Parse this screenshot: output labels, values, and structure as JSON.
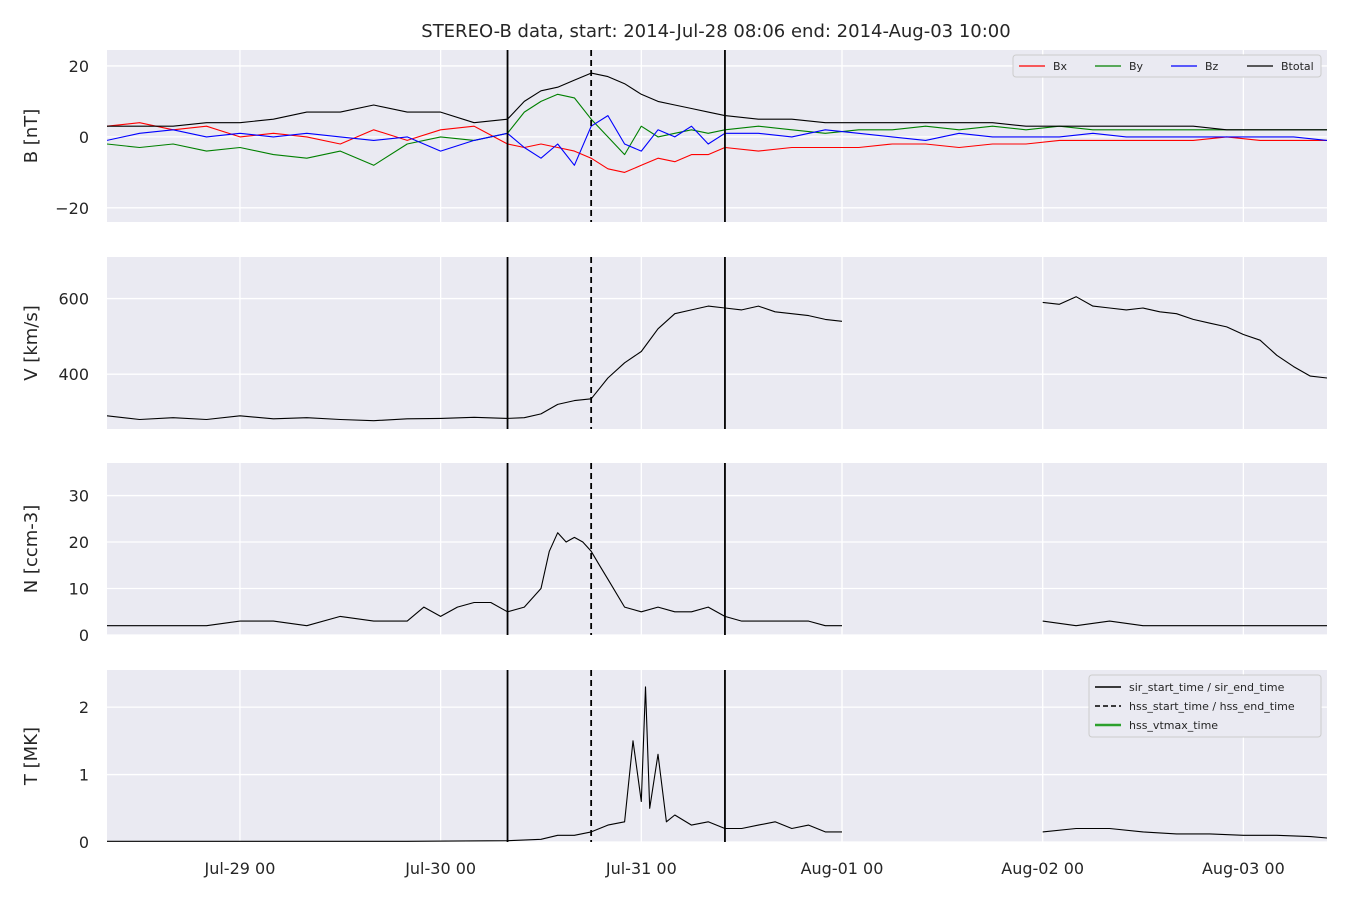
{
  "chart_data": {
    "type": "line",
    "title": "STEREO-B data, start: 2014-Jul-28 08:06  end: 2014-Aug-03 10:00",
    "x_unit": "hours since 2014-07-28 00:00",
    "x_ticks": [
      {
        "x": 24,
        "label": "Jul-29 00"
      },
      {
        "x": 48,
        "label": "Jul-30 00"
      },
      {
        "x": 72,
        "label": "Jul-31 00"
      },
      {
        "x": 96,
        "label": "Aug-01 00"
      },
      {
        "x": 120,
        "label": "Aug-02 00"
      },
      {
        "x": 144,
        "label": "Aug-03 00"
      }
    ],
    "xlim": [
      8.1,
      154.0
    ],
    "events": [
      {
        "name": "sir_start_time",
        "x": 56.0,
        "style": "solid"
      },
      {
        "name": "hss_start_time",
        "x": 66.0,
        "style": "dashed"
      },
      {
        "name": "sir_end_time",
        "x": 82.0,
        "style": "solid"
      }
    ],
    "panels": [
      {
        "ylabel": "B [nT]",
        "ylim": [
          -24,
          24.5
        ],
        "yticks": [
          {
            "v": 20,
            "label": "20"
          },
          {
            "v": 0,
            "label": "0"
          },
          {
            "v": -20,
            "label": "−20"
          }
        ],
        "legend_position": "top-right",
        "series": [
          {
            "name": "Bx",
            "color": "#ff0000",
            "x": [
              8.1,
              12,
              16,
              20,
              24,
              28,
              32,
              36,
              40,
              44,
              48,
              52,
              56,
              58,
              60,
              62,
              64,
              66,
              68,
              70,
              72,
              74,
              76,
              78,
              80,
              82,
              86,
              90,
              94,
              98,
              102,
              106,
              110,
              114,
              118,
              122,
              126,
              130,
              134,
              138,
              142,
              146,
              150,
              154
            ],
            "y": [
              3,
              4,
              2,
              3,
              0,
              1,
              0,
              -2,
              2,
              -1,
              2,
              3,
              -2,
              -3,
              -2,
              -3,
              -4,
              -6,
              -9,
              -10,
              -8,
              -6,
              -7,
              -5,
              -5,
              -3,
              -4,
              -3,
              -3,
              -3,
              -2,
              -2,
              -3,
              -2,
              -2,
              -1,
              -1,
              -1,
              -1,
              -1,
              0,
              -1,
              -1,
              -1
            ]
          },
          {
            "name": "By",
            "color": "#008000",
            "x": [
              8.1,
              12,
              16,
              20,
              24,
              28,
              32,
              36,
              40,
              44,
              48,
              52,
              56,
              58,
              60,
              62,
              64,
              66,
              68,
              70,
              72,
              74,
              76,
              78,
              80,
              82,
              86,
              90,
              94,
              98,
              102,
              106,
              110,
              114,
              118,
              122,
              126,
              130,
              134,
              138,
              142,
              146,
              150,
              154
            ],
            "y": [
              -2,
              -3,
              -2,
              -4,
              -3,
              -5,
              -6,
              -4,
              -8,
              -2,
              0,
              -1,
              1,
              7,
              10,
              12,
              11,
              5,
              0,
              -5,
              3,
              0,
              1,
              2,
              1,
              2,
              3,
              2,
              1,
              2,
              2,
              3,
              2,
              3,
              2,
              3,
              2,
              2,
              2,
              2,
              2,
              2,
              2,
              2
            ]
          },
          {
            "name": "Bz",
            "color": "#0000ff",
            "x": [
              8.1,
              12,
              16,
              20,
              24,
              28,
              32,
              36,
              40,
              44,
              48,
              52,
              56,
              58,
              60,
              62,
              64,
              66,
              68,
              70,
              72,
              74,
              76,
              78,
              80,
              82,
              86,
              90,
              94,
              98,
              102,
              106,
              110,
              114,
              118,
              122,
              126,
              130,
              134,
              138,
              142,
              146,
              150,
              154
            ],
            "y": [
              -1,
              1,
              2,
              0,
              1,
              0,
              1,
              0,
              -1,
              0,
              -4,
              -1,
              1,
              -3,
              -6,
              -2,
              -8,
              3,
              6,
              -2,
              -4,
              2,
              0,
              3,
              -2,
              1,
              1,
              0,
              2,
              1,
              0,
              -1,
              1,
              0,
              0,
              0,
              1,
              0,
              0,
              0,
              0,
              0,
              0,
              -1
            ]
          },
          {
            "name": "Btotal",
            "color": "#000000",
            "x": [
              8.1,
              12,
              16,
              20,
              24,
              28,
              32,
              36,
              40,
              44,
              48,
              52,
              56,
              58,
              60,
              62,
              64,
              66,
              68,
              70,
              72,
              74,
              76,
              78,
              80,
              82,
              86,
              90,
              94,
              98,
              102,
              106,
              110,
              114,
              118,
              122,
              126,
              130,
              134,
              138,
              142,
              146,
              150,
              154
            ],
            "y": [
              3,
              3,
              3,
              4,
              4,
              5,
              7,
              7,
              9,
              7,
              7,
              4,
              5,
              10,
              13,
              14,
              16,
              18,
              17,
              15,
              12,
              10,
              9,
              8,
              7,
              6,
              5,
              5,
              4,
              4,
              4,
              4,
              4,
              4,
              3,
              3,
              3,
              3,
              3,
              3,
              2,
              2,
              2,
              2
            ]
          }
        ]
      },
      {
        "ylabel": "V [km/s]",
        "ylim": [
          255,
          710
        ],
        "yticks": [
          {
            "v": 600,
            "label": "600"
          },
          {
            "v": 400,
            "label": "400"
          }
        ],
        "series": [
          {
            "name": "V",
            "color": "#000000",
            "segments": [
              {
                "x": [
                  8.1,
                  12,
                  16,
                  20,
                  24,
                  28,
                  32,
                  36,
                  40,
                  44,
                  48,
                  52,
                  56,
                  58,
                  60,
                  62,
                  64,
                  66,
                  68,
                  70,
                  72,
                  74,
                  76,
                  78,
                  80,
                  82,
                  84,
                  86,
                  88,
                  90,
                  92,
                  94,
                  96
                ],
                "y": [
                  290,
                  280,
                  285,
                  280,
                  290,
                  282,
                  285,
                  280,
                  277,
                  282,
                  283,
                  286,
                  283,
                  285,
                  295,
                  320,
                  330,
                  335,
                  390,
                  430,
                  460,
                  520,
                  560,
                  570,
                  580,
                  575,
                  570,
                  580,
                  565,
                  560,
                  555,
                  545,
                  540
                ]
              },
              {
                "x": [
                  120,
                  122,
                  124,
                  126,
                  128,
                  130,
                  132,
                  134,
                  136,
                  138,
                  140,
                  142,
                  144,
                  146,
                  148,
                  150,
                  152,
                  154
                ],
                "y": [
                  590,
                  585,
                  605,
                  580,
                  575,
                  570,
                  575,
                  565,
                  560,
                  545,
                  535,
                  525,
                  505,
                  490,
                  450,
                  420,
                  395,
                  390
                ]
              }
            ]
          }
        ]
      },
      {
        "ylabel": "N [ccm-3]",
        "ylim": [
          0,
          37
        ],
        "yticks": [
          {
            "v": 30,
            "label": "30"
          },
          {
            "v": 20,
            "label": "20"
          },
          {
            "v": 10,
            "label": "10"
          },
          {
            "v": 0,
            "label": "0"
          }
        ],
        "series": [
          {
            "name": "N",
            "color": "#000000",
            "segments": [
              {
                "x": [
                  8.1,
                  12,
                  16,
                  20,
                  24,
                  28,
                  32,
                  36,
                  40,
                  44,
                  46,
                  48,
                  50,
                  52,
                  54,
                  56,
                  58,
                  60,
                  61,
                  62,
                  63,
                  64,
                  65,
                  66,
                  67,
                  68,
                  70,
                  72,
                  74,
                  76,
                  78,
                  80,
                  82,
                  84,
                  86,
                  88,
                  90,
                  92,
                  94,
                  96
                ],
                "y": [
                  2,
                  2,
                  2,
                  2,
                  3,
                  3,
                  2,
                  4,
                  3,
                  3,
                  6,
                  4,
                  6,
                  7,
                  7,
                  5,
                  6,
                  10,
                  18,
                  22,
                  20,
                  21,
                  20,
                  18,
                  15,
                  12,
                  6,
                  5,
                  6,
                  5,
                  5,
                  6,
                  4,
                  3,
                  3,
                  3,
                  3,
                  3,
                  2,
                  2
                ]
              },
              {
                "x": [
                  120,
                  124,
                  128,
                  132,
                  136,
                  140,
                  144,
                  148,
                  152,
                  154
                ],
                "y": [
                  3,
                  2,
                  3,
                  2,
                  2,
                  2,
                  2,
                  2,
                  2,
                  2
                ]
              }
            ]
          }
        ]
      },
      {
        "ylabel": "T [MK]",
        "ylim": [
          0,
          2.55
        ],
        "yticks": [
          {
            "v": 2,
            "label": "2"
          },
          {
            "v": 1,
            "label": "1"
          },
          {
            "v": 0,
            "label": "0"
          }
        ],
        "legend_position": "top-right",
        "series": [
          {
            "name": "T",
            "color": "#000000",
            "segments": [
              {
                "x": [
                  8.1,
                  20,
                  32,
                  44,
                  56,
                  60,
                  62,
                  64,
                  66,
                  68,
                  70,
                  71,
                  72,
                  72.5,
                  73,
                  74,
                  75,
                  76,
                  78,
                  80,
                  82,
                  84,
                  86,
                  88,
                  90,
                  92,
                  94,
                  96
                ],
                "y": [
                  0.01,
                  0.01,
                  0.01,
                  0.01,
                  0.02,
                  0.04,
                  0.1,
                  0.1,
                  0.15,
                  0.25,
                  0.3,
                  1.5,
                  0.6,
                  2.3,
                  0.5,
                  1.3,
                  0.3,
                  0.4,
                  0.25,
                  0.3,
                  0.2,
                  0.2,
                  0.25,
                  0.3,
                  0.2,
                  0.25,
                  0.15,
                  0.15
                ]
              },
              {
                "x": [
                  120,
                  124,
                  128,
                  132,
                  136,
                  140,
                  144,
                  148,
                  152,
                  154
                ],
                "y": [
                  0.15,
                  0.2,
                  0.2,
                  0.15,
                  0.12,
                  0.12,
                  0.1,
                  0.1,
                  0.08,
                  0.06
                ]
              }
            ]
          }
        ],
        "legend_entries": [
          {
            "label": "sir_start_time / sir_end_time",
            "style": "solid",
            "color": "#000000"
          },
          {
            "label": "hss_start_time / hss_end_time",
            "style": "dashed",
            "color": "#000000"
          },
          {
            "label": "hss_vtmax_time",
            "style": "solid",
            "color": "#2ca02c"
          }
        ]
      }
    ]
  }
}
